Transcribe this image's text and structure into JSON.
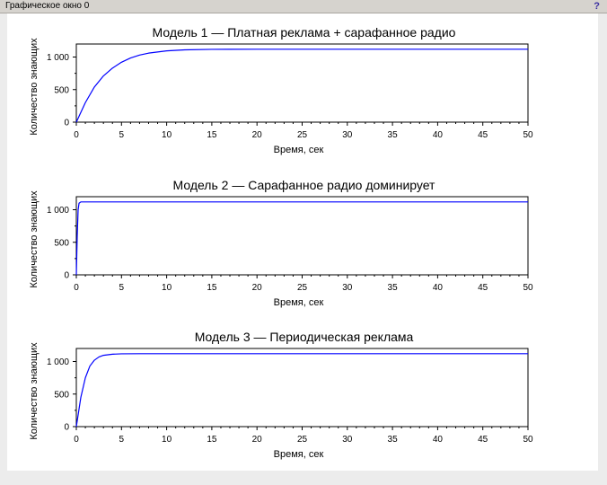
{
  "window": {
    "title": "Графическое окно 0",
    "help_icon": "question-mark-icon"
  },
  "chart_data": [
    {
      "type": "line",
      "title": "Модель 1 — Платная реклама + сарафанное радио",
      "xlabel": "Время, сек",
      "ylabel": "Количество знающих",
      "xlim": [
        0,
        50
      ],
      "ylim": [
        0,
        1200
      ],
      "xticks": [
        0,
        5,
        10,
        15,
        20,
        25,
        30,
        35,
        40,
        45,
        50
      ],
      "yticks": [
        0,
        500,
        1000
      ],
      "ytick_labels": [
        "0",
        "500",
        "1 000"
      ],
      "color": "#0000ff",
      "series": [
        {
          "x": [
            0,
            1,
            2,
            3,
            4,
            5,
            6,
            7,
            8,
            10,
            12,
            15,
            20,
            30,
            50
          ],
          "y": [
            0,
            300,
            540,
            710,
            830,
            920,
            985,
            1030,
            1060,
            1095,
            1110,
            1118,
            1120,
            1120,
            1120
          ]
        }
      ]
    },
    {
      "type": "line",
      "title": "Модель 2 — Сарафанное радио доминирует",
      "xlabel": "Время, сек",
      "ylabel": "Количество знающих",
      "xlim": [
        0,
        50
      ],
      "ylim": [
        0,
        1200
      ],
      "xticks": [
        0,
        5,
        10,
        15,
        20,
        25,
        30,
        35,
        40,
        45,
        50
      ],
      "yticks": [
        0,
        500,
        1000
      ],
      "ytick_labels": [
        "0",
        "500",
        "1 000"
      ],
      "color": "#0000ff",
      "series": [
        {
          "x": [
            0,
            0.1,
            0.2,
            0.3,
            0.5,
            1,
            50
          ],
          "y": [
            0,
            600,
            1000,
            1100,
            1120,
            1120,
            1120
          ]
        }
      ]
    },
    {
      "type": "line",
      "title": "Модель 3 — Периодическая реклама",
      "xlabel": "Время, сек",
      "ylabel": "Количество знающих",
      "xlim": [
        0,
        50
      ],
      "ylim": [
        0,
        1200
      ],
      "xticks": [
        0,
        5,
        10,
        15,
        20,
        25,
        30,
        35,
        40,
        45,
        50
      ],
      "yticks": [
        0,
        500,
        1000
      ],
      "ytick_labels": [
        "0",
        "500",
        "1 000"
      ],
      "color": "#0000ff",
      "series": [
        {
          "x": [
            0,
            0.5,
            1,
            1.5,
            2,
            2.5,
            3,
            4,
            5,
            7,
            10,
            50
          ],
          "y": [
            0,
            450,
            750,
            930,
            1020,
            1070,
            1095,
            1112,
            1118,
            1120,
            1120,
            1120
          ]
        }
      ]
    }
  ]
}
